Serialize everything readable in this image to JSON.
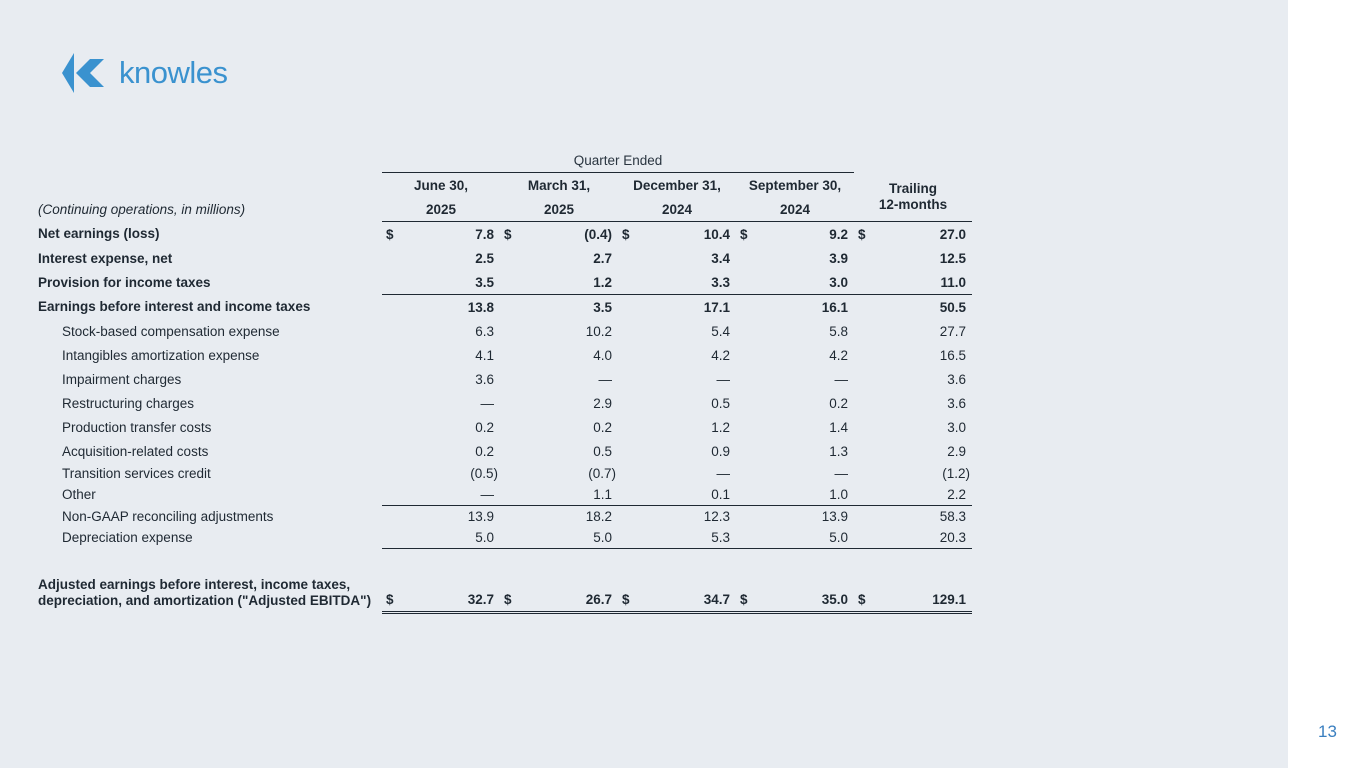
{
  "logo": {
    "text": "knowles",
    "icon": "knowles-chevron-logo",
    "color": "#3a92cf"
  },
  "page_number": "13",
  "table": {
    "group_header": "Quarter Ended",
    "caption": "(Continuing operations, in millions)",
    "columns": [
      {
        "line1": "June 30,",
        "line2": "2025"
      },
      {
        "line1": "March 31,",
        "line2": "2025"
      },
      {
        "line1": "December 31,",
        "line2": "2024"
      },
      {
        "line1": "September 30,",
        "line2": "2024"
      }
    ],
    "trailing_header": {
      "line1": "Trailing",
      "line2": "12-months"
    },
    "currency": "$",
    "rows": [
      {
        "label": "Net earnings (loss)",
        "values": [
          "7.8",
          "(0.4)",
          "10.4",
          "9.2",
          "27.0"
        ]
      },
      {
        "label": "Interest expense, net",
        "values": [
          "2.5",
          "2.7",
          "3.4",
          "3.9",
          "12.5"
        ]
      },
      {
        "label": "Provision for income taxes",
        "values": [
          "3.5",
          "1.2",
          "3.3",
          "3.0",
          "11.0"
        ]
      },
      {
        "label": "Earnings before interest and income taxes",
        "values": [
          "13.8",
          "3.5",
          "17.1",
          "16.1",
          "50.5"
        ]
      },
      {
        "label": "Stock-based compensation expense",
        "values": [
          "6.3",
          "10.2",
          "5.4",
          "5.8",
          "27.7"
        ]
      },
      {
        "label": "Intangibles amortization expense",
        "values": [
          "4.1",
          "4.0",
          "4.2",
          "4.2",
          "16.5"
        ]
      },
      {
        "label": "Impairment charges",
        "values": [
          "3.6",
          "—",
          "—",
          "—",
          "3.6"
        ]
      },
      {
        "label": "Restructuring charges",
        "values": [
          "—",
          "2.9",
          "0.5",
          "0.2",
          "3.6"
        ]
      },
      {
        "label": "Production transfer costs",
        "values": [
          "0.2",
          "0.2",
          "1.2",
          "1.4",
          "3.0"
        ]
      },
      {
        "label": "Acquisition-related costs",
        "values": [
          "0.2",
          "0.5",
          "0.9",
          "1.3",
          "2.9"
        ]
      },
      {
        "label": "Transition services credit",
        "values": [
          "(0.5)",
          "(0.7)",
          "—",
          "—",
          "(1.2)"
        ]
      },
      {
        "label": "Other",
        "values": [
          "—",
          "1.1",
          "0.1",
          "1.0",
          "2.2"
        ]
      },
      {
        "label": "Non-GAAP reconciling adjustments",
        "values": [
          "13.9",
          "18.2",
          "12.3",
          "13.9",
          "58.3"
        ]
      },
      {
        "label": "Depreciation expense",
        "values": [
          "5.0",
          "5.0",
          "5.3",
          "5.0",
          "20.3"
        ]
      },
      {
        "label": "Adjusted earnings before interest, income taxes, depreciation, and amortization (\"Adjusted EBITDA\")",
        "values": [
          "32.7",
          "26.7",
          "34.7",
          "35.0",
          "129.1"
        ]
      }
    ]
  }
}
